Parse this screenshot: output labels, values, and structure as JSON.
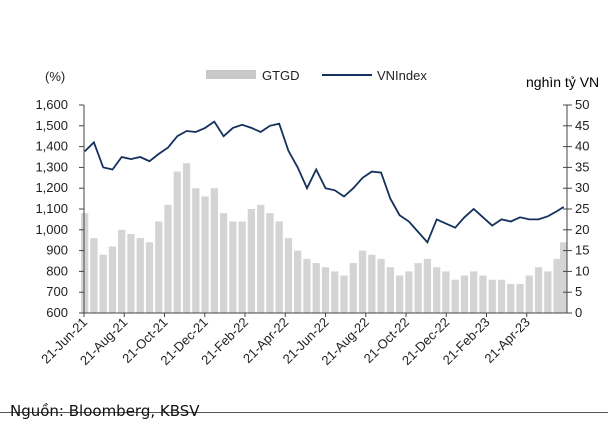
{
  "chart_data": {
    "type": "bar+line",
    "left_axis_label": "(%)",
    "right_axis_label": "nghìn tỷ VN",
    "legend": [
      {
        "name": "GTGD",
        "kind": "bar",
        "color": "#c8c8c8"
      },
      {
        "name": "VNIndex",
        "kind": "line",
        "color": "#14305c"
      }
    ],
    "legend_placement": "top-center",
    "ylim_left": [
      600,
      1600
    ],
    "yticks_left": [
      "1,600",
      "1,500",
      "1,400",
      "1,300",
      "1,200",
      "1,100",
      "1,000",
      "900",
      "800",
      "700",
      "600"
    ],
    "ylim_right": [
      0,
      50
    ],
    "yticks_right": [
      "50",
      "45",
      "40",
      "35",
      "30",
      "25",
      "20",
      "15",
      "10",
      "5",
      "0"
    ],
    "xlim": [
      "2021-06-21",
      "2023-06-21"
    ],
    "xtick_labels": [
      "21-Jun-21",
      "21-Aug-21",
      "21-Oct-21",
      "21-Dec-21",
      "21-Feb-22",
      "21-Apr-22",
      "21-Jun-22",
      "21-Aug-22",
      "21-Oct-22",
      "21-Dec-22",
      "21-Feb-23",
      "21-Apr-23"
    ],
    "grid": false,
    "dates": [
      "2021-06-22",
      "2021-07-06",
      "2021-07-20",
      "2021-08-03",
      "2021-08-17",
      "2021-08-31",
      "2021-09-14",
      "2021-09-28",
      "2021-10-12",
      "2021-10-26",
      "2021-11-09",
      "2021-11-23",
      "2021-12-07",
      "2021-12-21",
      "2022-01-04",
      "2022-01-18",
      "2022-02-01",
      "2022-02-15",
      "2022-03-01",
      "2022-03-15",
      "2022-03-29",
      "2022-04-12",
      "2022-04-26",
      "2022-05-10",
      "2022-05-24",
      "2022-06-07",
      "2022-06-21",
      "2022-07-05",
      "2022-07-19",
      "2022-08-02",
      "2022-08-16",
      "2022-08-30",
      "2022-09-13",
      "2022-09-27",
      "2022-10-11",
      "2022-10-25",
      "2022-11-08",
      "2022-11-22",
      "2022-12-06",
      "2022-12-20",
      "2023-01-03",
      "2023-01-17",
      "2023-01-31",
      "2023-02-14",
      "2023-02-28",
      "2023-03-14",
      "2023-03-28",
      "2023-04-11",
      "2023-04-25",
      "2023-05-09",
      "2023-05-23",
      "2023-06-06",
      "2023-06-16"
    ],
    "series": [
      {
        "name": "VNIndex",
        "axis": "left",
        "values": [
          1377,
          1420,
          1300,
          1290,
          1350,
          1340,
          1350,
          1330,
          1365,
          1395,
          1450,
          1475,
          1470,
          1490,
          1520,
          1450,
          1490,
          1505,
          1490,
          1470,
          1500,
          1510,
          1380,
          1300,
          1200,
          1290,
          1200,
          1190,
          1160,
          1200,
          1250,
          1280,
          1275,
          1150,
          1070,
          1040,
          990,
          940,
          1050,
          1030,
          1010,
          1060,
          1100,
          1060,
          1020,
          1050,
          1040,
          1060,
          1050,
          1050,
          1065,
          1090,
          1110
        ]
      },
      {
        "name": "GTGD",
        "axis": "right",
        "values": [
          24,
          18,
          14,
          16,
          20,
          19,
          18,
          17,
          22,
          26,
          34,
          36,
          30,
          28,
          30,
          24,
          22,
          22,
          25,
          26,
          24,
          22,
          18,
          15,
          13,
          12,
          11,
          10,
          9,
          12,
          15,
          14,
          13,
          11,
          9,
          10,
          12,
          13,
          11,
          10,
          8,
          9,
          10,
          9,
          8,
          8,
          7,
          7,
          9,
          11,
          10,
          13,
          17
        ]
      }
    ]
  },
  "footer": {
    "source": "Nguồn: Bloomberg, KBSV"
  }
}
